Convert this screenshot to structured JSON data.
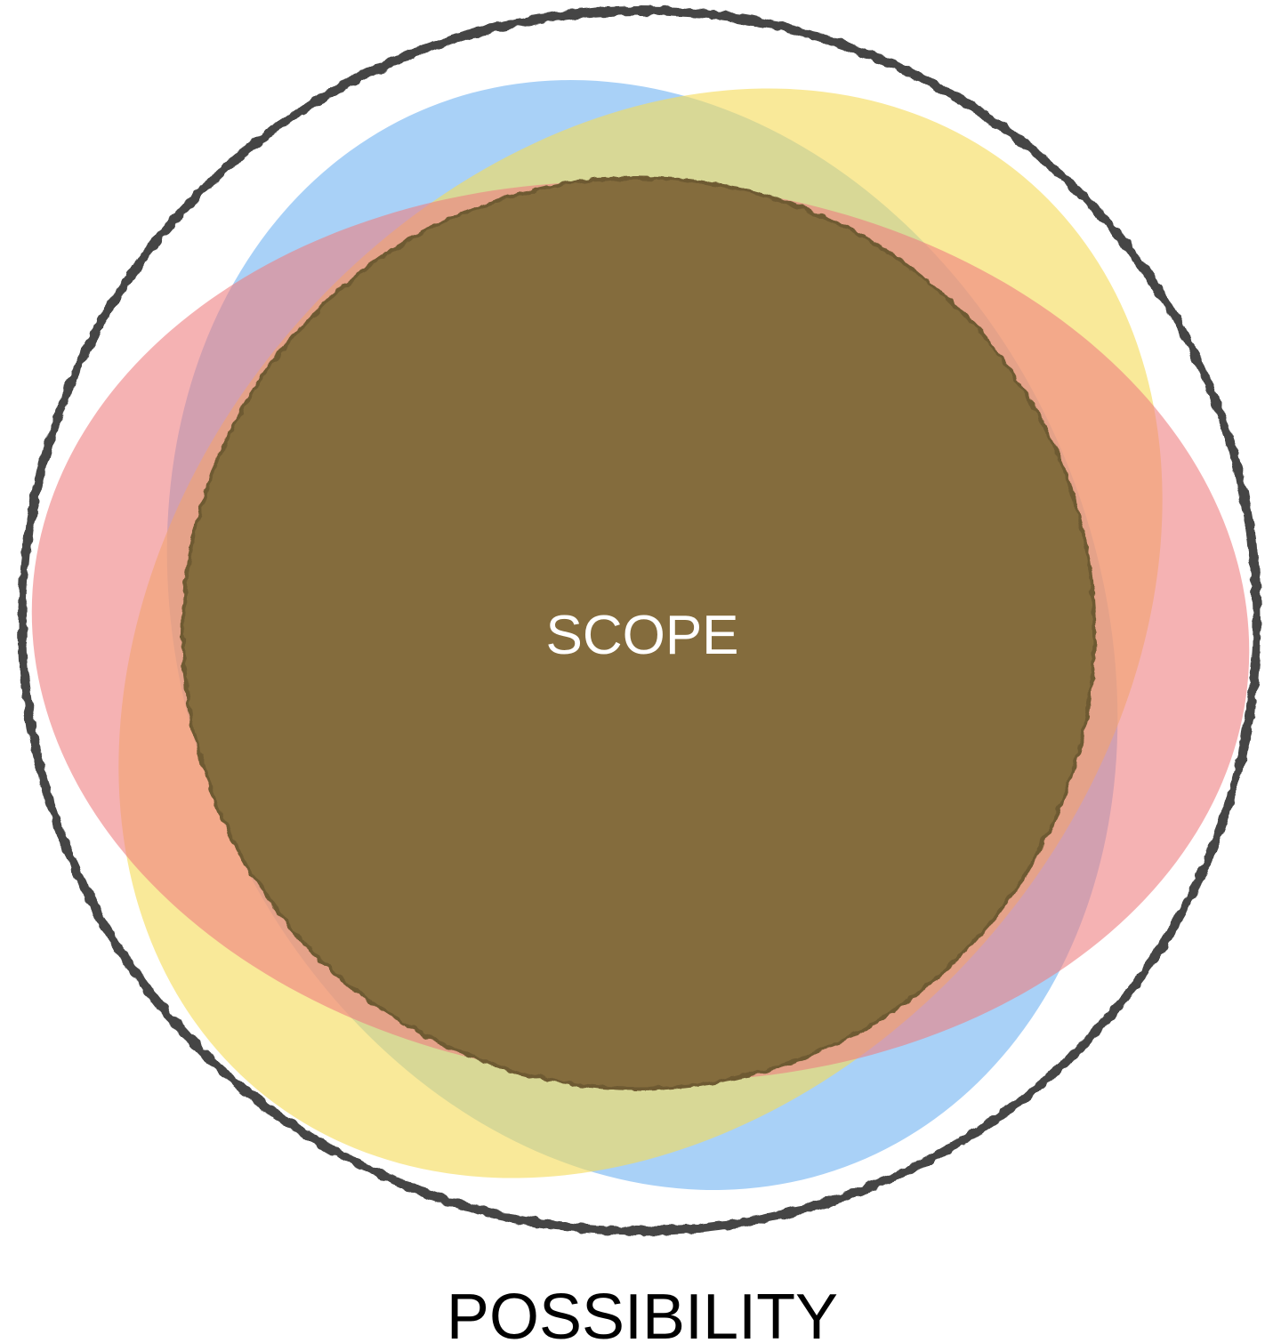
{
  "diagram": {
    "inner_label": "SCOPE",
    "outer_label": "POSSIBILITY"
  }
}
